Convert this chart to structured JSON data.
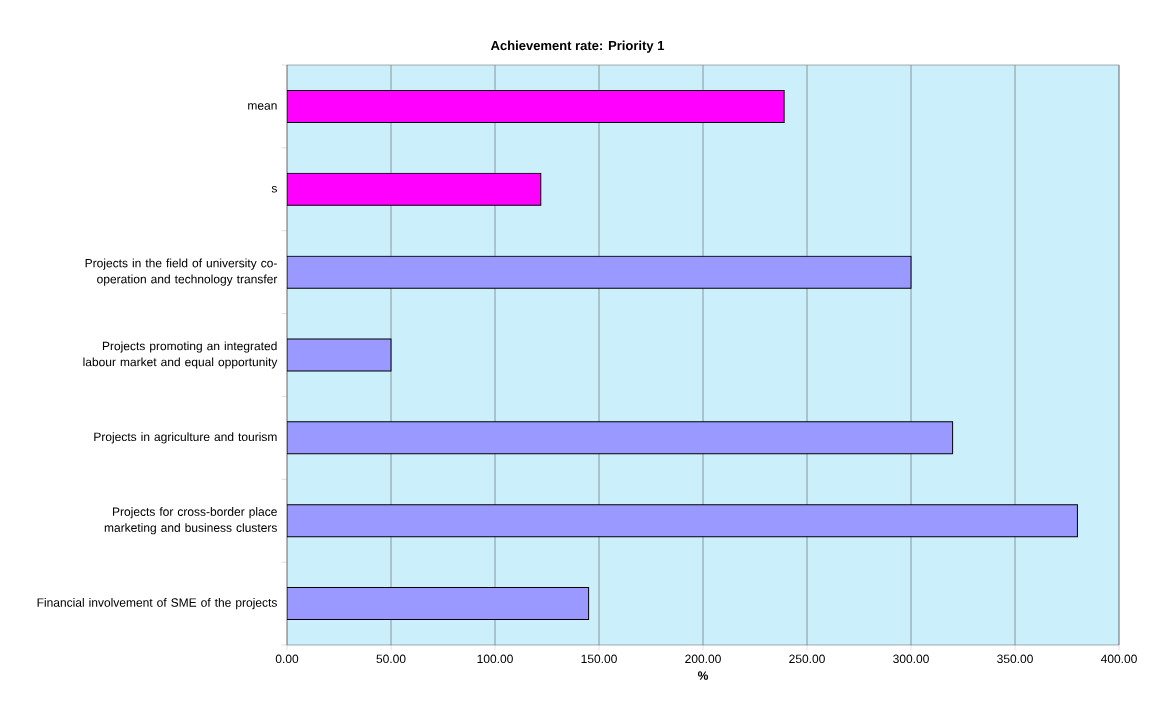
{
  "chart_data": {
    "type": "bar",
    "orientation": "horizontal",
    "title": "Achievement rate: Priority 1",
    "xlabel": "%",
    "categories": [
      "mean",
      "s",
      "Projects in the field of university co-operation and technology transfer",
      "Projects promoting an integrated labour market and equal opportunity",
      "Projects in agriculture and tourism",
      "Projects for cross-border place marketing and business clusters",
      "Financial involvement of SME of the projects"
    ],
    "values": [
      239,
      122,
      300,
      50,
      320,
      380,
      145
    ],
    "colors": [
      "#ff00ff",
      "#ff00ff",
      "#9999ff",
      "#9999ff",
      "#9999ff",
      "#9999ff",
      "#9999ff"
    ],
    "xlim": [
      0,
      400
    ],
    "xticks": [
      {
        "value": 0,
        "label": "0.00"
      },
      {
        "value": 50,
        "label": "50.00"
      },
      {
        "value": 100,
        "label": "100.00"
      },
      {
        "value": 150,
        "label": "150.00"
      },
      {
        "value": 200,
        "label": "200.00"
      },
      {
        "value": 250,
        "label": "250.00"
      },
      {
        "value": 300,
        "label": "300.00"
      },
      {
        "value": 350,
        "label": "350.00"
      },
      {
        "value": 400,
        "label": "400.00"
      }
    ],
    "grid": "x"
  }
}
